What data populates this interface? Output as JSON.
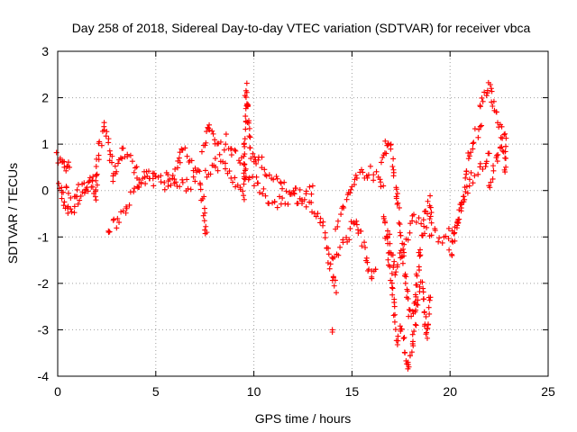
{
  "chart_data": {
    "type": "scatter",
    "title": "Day 258 of 2018, Sidereal Day-to-day VTEC variation (SDTVAR) for receiver vbca",
    "xlabel": "GPS time / hours",
    "ylabel": "SDTVAR / TECUs",
    "xlim": [
      0,
      25
    ],
    "ylim": [
      -4,
      3
    ],
    "xticks": [
      0,
      5,
      10,
      15,
      20,
      25
    ],
    "yticks": [
      -4,
      -3,
      -2,
      -1,
      0,
      1,
      2,
      3
    ],
    "grid": true,
    "marker": "+",
    "color": "#ff0000",
    "series": [
      {
        "name": "SDTVAR",
        "trace": [
          [
            0.0,
            0.7
          ],
          [
            0.2,
            0.6
          ],
          [
            0.4,
            0.55
          ],
          [
            0.6,
            0.5
          ],
          [
            0.0,
            0.1
          ],
          [
            0.3,
            -0.2
          ],
          [
            0.5,
            -0.45
          ],
          [
            0.8,
            -0.35
          ],
          [
            1.2,
            -0.1
          ],
          [
            1.6,
            0.2
          ],
          [
            1.8,
            0.3
          ],
          [
            0.2,
            0.0
          ],
          [
            0.8,
            -0.05
          ],
          [
            1.3,
            0.05
          ],
          [
            1.7,
            0.15
          ],
          [
            2.0,
            -0.2
          ],
          [
            2.0,
            0.5
          ],
          [
            2.2,
            1.1
          ],
          [
            2.4,
            1.4
          ],
          [
            2.6,
            1.0
          ],
          [
            2.8,
            0.3
          ],
          [
            3.0,
            0.5
          ],
          [
            3.3,
            0.9
          ],
          [
            3.6,
            0.7
          ],
          [
            4.0,
            0.4
          ],
          [
            4.5,
            0.25
          ],
          [
            5.0,
            0.3
          ],
          [
            2.6,
            -0.85
          ],
          [
            3.0,
            -0.7
          ],
          [
            3.5,
            -0.3
          ],
          [
            4.0,
            0.0
          ],
          [
            4.5,
            0.3
          ],
          [
            5.0,
            0.2
          ],
          [
            5.5,
            0.3
          ],
          [
            6.0,
            0.2
          ],
          [
            6.5,
            0.1
          ],
          [
            7.0,
            0.2
          ],
          [
            5.5,
            0.1
          ],
          [
            6.0,
            0.4
          ],
          [
            6.4,
            0.95
          ],
          [
            6.8,
            0.6
          ],
          [
            7.2,
            0.3
          ],
          [
            7.5,
            -0.5
          ],
          [
            7.6,
            -0.9
          ],
          [
            7.4,
            0.8
          ],
          [
            7.7,
            1.4
          ],
          [
            8.0,
            1.2
          ],
          [
            8.3,
            0.9
          ],
          [
            8.6,
            1.1
          ],
          [
            9.0,
            0.8
          ],
          [
            9.4,
            0.6
          ],
          [
            9.6,
            0.3
          ],
          [
            7.5,
            0.3
          ],
          [
            8.0,
            0.6
          ],
          [
            8.5,
            0.5
          ],
          [
            9.0,
            0.2
          ],
          [
            9.5,
            -0.1
          ],
          [
            9.6,
            2.2
          ],
          [
            9.7,
            1.6
          ],
          [
            9.8,
            0.9
          ],
          [
            10.0,
            0.6
          ],
          [
            10.3,
            0.7
          ],
          [
            10.6,
            0.4
          ],
          [
            11.0,
            0.2
          ],
          [
            11.5,
            0.1
          ],
          [
            12.0,
            0.0
          ],
          [
            12.5,
            -0.1
          ],
          [
            13.0,
            0.1
          ],
          [
            9.6,
            0.4
          ],
          [
            10.0,
            0.2
          ],
          [
            10.5,
            -0.1
          ],
          [
            11.0,
            -0.25
          ],
          [
            11.5,
            -0.2
          ],
          [
            12.0,
            -0.1
          ],
          [
            12.5,
            -0.2
          ],
          [
            13.0,
            -0.4
          ],
          [
            13.5,
            -0.8
          ],
          [
            13.8,
            -1.4
          ],
          [
            14.0,
            -1.9
          ],
          [
            14.2,
            -2.2
          ],
          [
            14.0,
            -1.5
          ],
          [
            14.4,
            -1.2
          ],
          [
            14.8,
            -1.0
          ],
          [
            15.2,
            -0.6
          ],
          [
            15.5,
            -1.0
          ],
          [
            15.8,
            -1.5
          ],
          [
            16.0,
            -1.9
          ],
          [
            16.2,
            -1.7
          ],
          [
            14.2,
            -0.8
          ],
          [
            14.6,
            -0.3
          ],
          [
            15.0,
            0.0
          ],
          [
            15.3,
            0.4
          ],
          [
            15.6,
            0.3
          ],
          [
            16.0,
            0.5
          ],
          [
            16.3,
            0.2
          ],
          [
            16.6,
            0.1
          ],
          [
            14.0,
            -3.0
          ],
          [
            16.5,
            0.6
          ],
          [
            16.8,
            1.1
          ],
          [
            17.0,
            0.9
          ],
          [
            17.2,
            0.2
          ],
          [
            17.4,
            -0.6
          ],
          [
            17.6,
            -1.4
          ],
          [
            17.8,
            -2.2
          ],
          [
            18.0,
            -2.8
          ],
          [
            18.2,
            -2.4
          ],
          [
            18.4,
            -1.6
          ],
          [
            18.6,
            -1.0
          ],
          [
            18.8,
            -0.8
          ],
          [
            16.6,
            -0.5
          ],
          [
            16.9,
            -1.5
          ],
          [
            17.1,
            -2.4
          ],
          [
            17.3,
            -3.2
          ],
          [
            17.5,
            -2.9
          ],
          [
            17.7,
            -3.6
          ],
          [
            17.9,
            -3.75
          ],
          [
            18.1,
            -3.3
          ],
          [
            18.3,
            -2.5
          ],
          [
            18.6,
            -2.0
          ],
          [
            18.8,
            -3.2
          ],
          [
            19.0,
            -2.3
          ],
          [
            16.8,
            -0.9
          ],
          [
            17.2,
            -1.8
          ],
          [
            17.6,
            -1.2
          ],
          [
            18.2,
            -0.6
          ],
          [
            18.6,
            -0.6
          ],
          [
            19.0,
            -0.2
          ],
          [
            19.0,
            -0.9
          ],
          [
            19.5,
            -1.0
          ],
          [
            20.0,
            -0.95
          ],
          [
            20.3,
            -0.85
          ],
          [
            20.5,
            -0.5
          ],
          [
            20.8,
            0.2
          ],
          [
            21.0,
            0.8
          ],
          [
            21.3,
            1.2
          ],
          [
            21.6,
            1.4
          ],
          [
            20.0,
            -1.4
          ],
          [
            20.3,
            -0.9
          ],
          [
            20.6,
            -0.3
          ],
          [
            21.0,
            0.2
          ],
          [
            21.4,
            0.4
          ],
          [
            21.8,
            0.6
          ],
          [
            22.0,
            0.8
          ],
          [
            21.5,
            1.8
          ],
          [
            21.8,
            2.1
          ],
          [
            22.0,
            2.25
          ],
          [
            22.2,
            1.9
          ],
          [
            22.4,
            1.6
          ],
          [
            22.6,
            1.3
          ],
          [
            22.8,
            1.1
          ],
          [
            22.8,
            0.4
          ],
          [
            22.0,
            0.1
          ],
          [
            22.3,
            0.6
          ],
          [
            22.6,
            1.0
          ],
          [
            22.8,
            0.7
          ]
        ],
        "clusters": [
          [
            9.6,
            2.15
          ],
          [
            14.0,
            -3.05
          ],
          [
            17.9,
            -3.8
          ],
          [
            20.1,
            -1.4
          ],
          [
            22.1,
            2.2
          ],
          [
            2.6,
            -0.9
          ],
          [
            7.5,
            -0.85
          ]
        ]
      }
    ]
  }
}
